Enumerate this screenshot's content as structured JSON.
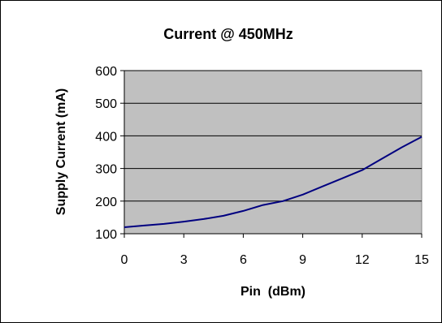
{
  "chart_data": {
    "type": "line",
    "title": "Current @ 450MHz",
    "xlabel": "Pin  (dBm)",
    "ylabel": "Supply Current (mA)",
    "xlim": [
      0,
      15
    ],
    "ylim": [
      100,
      600
    ],
    "x_ticks": [
      0,
      3,
      6,
      9,
      12,
      15
    ],
    "y_ticks": [
      100,
      200,
      300,
      400,
      500,
      600
    ],
    "grid": "horizontal",
    "series": [
      {
        "x": [
          0,
          1,
          2,
          3,
          4,
          5,
          6,
          7,
          8,
          9,
          10,
          11,
          12,
          13,
          14,
          15
        ],
        "values": [
          120,
          125,
          130,
          137,
          145,
          155,
          170,
          188,
          200,
          220,
          245,
          270,
          295,
          330,
          365,
          397
        ]
      }
    ],
    "colors": {
      "plot_background": "#c0c0c0",
      "line": "#000080",
      "gridline": "#000000"
    }
  }
}
